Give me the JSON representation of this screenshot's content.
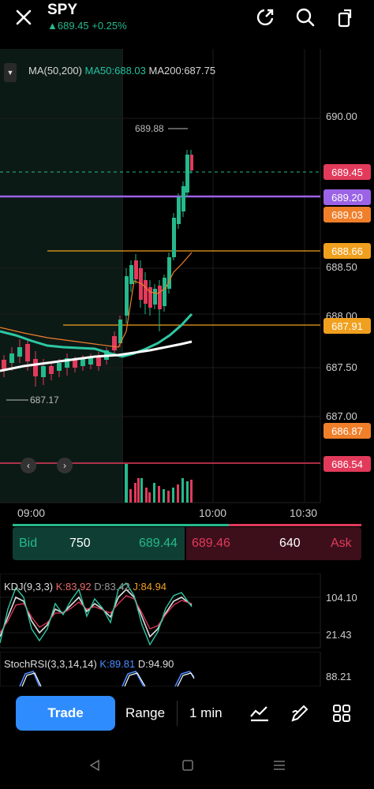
{
  "header": {
    "symbol": "SPY",
    "price_line": "▲689.45 +0.25%",
    "icons": [
      "close-icon",
      "share-icon",
      "search-icon",
      "rotate-icon"
    ]
  },
  "ma_legend": {
    "label": "MA(50,200)",
    "ma50": "MA50:688.03",
    "ma200": "MA200:687.75"
  },
  "price_axis": [
    "690.00",
    "688.50",
    "688.00",
    "687.50",
    "687.00"
  ],
  "price_tags": [
    {
      "value": "689.45",
      "color": "#e23a5b"
    },
    {
      "value": "689.20",
      "color": "#9b63e6"
    },
    {
      "value": "689.03",
      "color": "#f07f2a"
    },
    {
      "value": "688.66",
      "color": "#f0a01e"
    },
    {
      "value": "687.91",
      "color": "#f0a01e"
    },
    {
      "value": "686.87",
      "color": "#f07f2a"
    },
    {
      "value": "686.54",
      "color": "#e23a5b"
    }
  ],
  "annotations": {
    "high": "689.88",
    "low": "687.17"
  },
  "time_axis": [
    "09:00",
    "10:00",
    "10:30"
  ],
  "bid_ask": {
    "bid_label": "Bid",
    "bid_size": "750",
    "bid_price": "689.44",
    "ask_price": "689.46",
    "ask_size": "640",
    "ask_label": "Ask"
  },
  "kdj": {
    "name": "KDJ(9,3,3)",
    "k": "K:83.92",
    "d": "D:83.42",
    "j": "J:84.94",
    "axis_top": "104.10",
    "axis_bottom": "21.43"
  },
  "stochrsi": {
    "name": "StochRSI(3,3,14,14)",
    "k": "K:89.81",
    "d": "D:94.90",
    "axis_top": "88.21"
  },
  "bottom_bar": {
    "trade": "Trade",
    "range": "Range",
    "interval": "1 min"
  },
  "colors": {
    "up": "#25b98c",
    "down": "#e23a5b",
    "accent": "#2f8cff"
  }
}
